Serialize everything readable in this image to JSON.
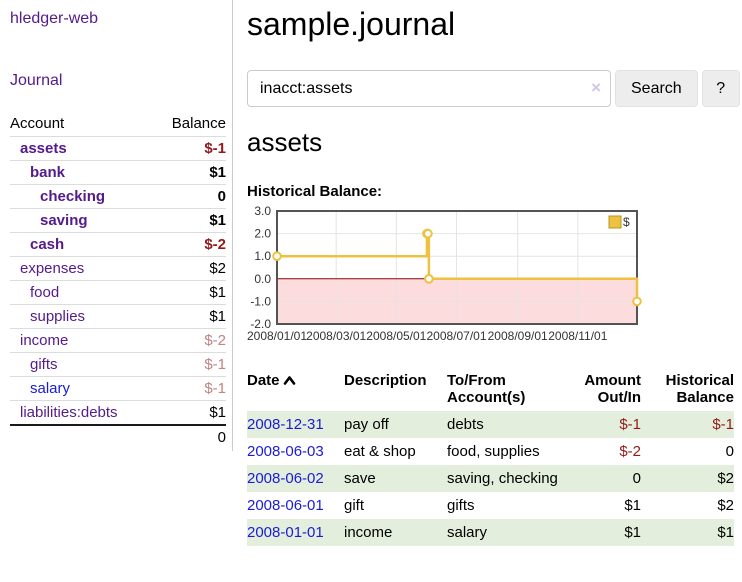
{
  "colors": {
    "visited_link_purple": "#551a8b",
    "link_blue": "#1b1bd6",
    "negative_strong_red": "#941a1a",
    "negative_muted_rose": "#c28383",
    "row_stripe_green": "#e3efdc",
    "button_gray": "#ededed"
  },
  "sidebar": {
    "app_title": "hledger-web",
    "nav": {
      "journal_label": "Journal"
    },
    "accounts_table": {
      "headers": {
        "account": "Account",
        "balance": "Balance"
      },
      "rows": [
        {
          "name": "assets",
          "indent": 1,
          "balance": "$-1",
          "bold": true,
          "balance_color": "negative-strong"
        },
        {
          "name": "bank",
          "indent": 2,
          "balance": "$1",
          "bold": true,
          "balance_color": "normal"
        },
        {
          "name": "checking",
          "indent": 3,
          "balance": "0",
          "bold": true,
          "balance_color": "normal"
        },
        {
          "name": "saving",
          "indent": 3,
          "balance": "$1",
          "bold": true,
          "balance_color": "normal"
        },
        {
          "name": "cash",
          "indent": 2,
          "balance": "$-2",
          "bold": true,
          "balance_color": "negative-strong"
        },
        {
          "name": "expenses",
          "indent": 1,
          "balance": "$2",
          "bold": false,
          "balance_color": "normal"
        },
        {
          "name": "food",
          "indent": 2,
          "balance": "$1",
          "bold": false,
          "balance_color": "normal"
        },
        {
          "name": "supplies",
          "indent": 2,
          "balance": "$1",
          "bold": false,
          "balance_color": "normal"
        },
        {
          "name": "income",
          "indent": 1,
          "balance": "$-2",
          "bold": false,
          "balance_color": "negative-muted"
        },
        {
          "name": "gifts",
          "indent": 2,
          "balance": "$-1",
          "bold": false,
          "balance_color": "negative-muted"
        },
        {
          "name": "salary",
          "indent": 2,
          "balance": "$-1",
          "bold": false,
          "balance_color": "negative-muted",
          "link_style": "unvisited"
        },
        {
          "name": "liabilities:debts",
          "indent": 1,
          "balance": "$1",
          "bold": false,
          "balance_color": "normal"
        }
      ],
      "total": "0"
    }
  },
  "main": {
    "title": "sample.journal",
    "search": {
      "value": "inacct:assets",
      "clear_icon": "×",
      "search_button": "Search",
      "help_button": "?"
    },
    "account_heading": "assets"
  },
  "chart_data": {
    "type": "line",
    "title": "Historical Balance:",
    "step": true,
    "series": [
      {
        "name": "$",
        "points": [
          [
            "2008-01-01",
            1
          ],
          [
            "2008-06-01",
            2
          ],
          [
            "2008-06-02",
            2
          ],
          [
            "2008-06-03",
            0
          ],
          [
            "2008-12-31",
            -1
          ]
        ]
      }
    ],
    "x_range": [
      "2008-01-01",
      "2008-12-31"
    ],
    "x_ticks": [
      "2008/01/01",
      "2008/03/01",
      "2008/05/01",
      "2008/07/01",
      "2008/09/01",
      "2008/11/01"
    ],
    "y_ticks": [
      3.0,
      2.0,
      1.0,
      0.0,
      -1.0,
      -2.0
    ],
    "ylim": [
      -2,
      3
    ],
    "grid": true,
    "legend_position": "top-right",
    "line_color": "#edc240",
    "negative_region_fill": "#fcdcdc",
    "zero_line_color": "#8b0000"
  },
  "register_table": {
    "headers": {
      "date": "Date",
      "description": "Description",
      "accounts": "To/From Account(s)",
      "amount": "Amount Out/In",
      "balance": "Historical Balance"
    },
    "rows": [
      {
        "date": "2008-12-31",
        "description": "pay off",
        "accounts": "debts",
        "amount": "$-1",
        "amount_negative": true,
        "balance": "$-1",
        "balance_negative": true
      },
      {
        "date": "2008-06-03",
        "description": "eat & shop",
        "accounts": "food, supplies",
        "amount": "$-2",
        "amount_negative": true,
        "balance": "0",
        "balance_negative": false
      },
      {
        "date": "2008-06-02",
        "description": "save",
        "accounts": "saving, checking",
        "amount": "0",
        "amount_negative": false,
        "balance": "$2",
        "balance_negative": false
      },
      {
        "date": "2008-06-01",
        "description": "gift",
        "accounts": "gifts",
        "amount": "$1",
        "amount_negative": false,
        "balance": "$2",
        "balance_negative": false
      },
      {
        "date": "2008-01-01",
        "description": "income",
        "accounts": "salary",
        "amount": "$1",
        "amount_negative": false,
        "balance": "$1",
        "balance_negative": false
      }
    ]
  }
}
